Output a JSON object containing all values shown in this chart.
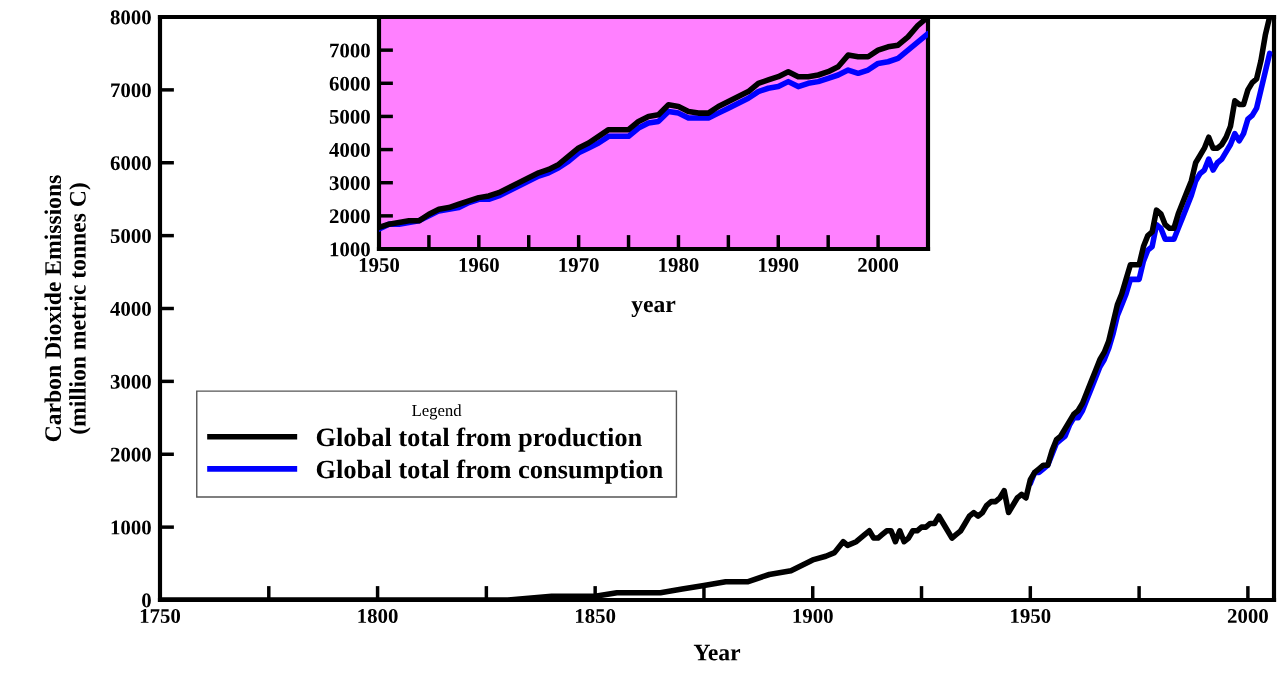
{
  "chart_data": [
    {
      "type": "line",
      "xlabel": "Year",
      "ylabel": "Carbon Dioxide Emissions\n(million metric tonnes C)",
      "legend_title": "Legend",
      "legend": "center left",
      "xlim": [
        1750,
        2006
      ],
      "xticks": [
        1750,
        {
          "value": 1775,
          "label": null
        },
        1800,
        {
          "value": 1825,
          "label": null
        },
        1850,
        {
          "value": 1875,
          "label": null
        },
        1900,
        {
          "value": 1925,
          "label": null
        },
        1950,
        {
          "value": 1975,
          "label": null
        },
        2000
      ],
      "ylim": [
        0,
        8000
      ],
      "yticks": [
        0,
        1000,
        2000,
        3000,
        4000,
        5000,
        6000,
        7000,
        8000
      ],
      "series": [
        {
          "name": "Global total from production",
          "color": "#000000",
          "x": [
            1750,
            1760,
            1770,
            1780,
            1790,
            1800,
            1810,
            1820,
            1830,
            1840,
            1850,
            1855,
            1860,
            1865,
            1870,
            1875,
            1880,
            1885,
            1890,
            1895,
            1900,
            1903,
            1905,
            1907,
            1908,
            1910,
            1912,
            1913,
            1914,
            1915,
            1916,
            1917,
            1918,
            1919,
            1920,
            1921,
            1922,
            1923,
            1924,
            1925,
            1926,
            1927,
            1928,
            1929,
            1930,
            1931,
            1932,
            1933,
            1934,
            1935,
            1936,
            1937,
            1938,
            1939,
            1940,
            1941,
            1942,
            1943,
            1944,
            1945,
            1946,
            1947,
            1948,
            1949,
            1950,
            1951,
            1952,
            1953,
            1954,
            1955,
            1956,
            1957,
            1958,
            1959,
            1960,
            1961,
            1962,
            1963,
            1964,
            1965,
            1966,
            1967,
            1968,
            1969,
            1970,
            1971,
            1972,
            1973,
            1974,
            1975,
            1976,
            1977,
            1978,
            1979,
            1980,
            1981,
            1982,
            1983,
            1984,
            1985,
            1986,
            1987,
            1988,
            1989,
            1990,
            1991,
            1992,
            1993,
            1994,
            1995,
            1996,
            1997,
            1998,
            1999,
            2000,
            2001,
            2002,
            2003,
            2004,
            2005
          ],
          "values": [
            0,
            0,
            0,
            0,
            0,
            0,
            0,
            0,
            0,
            50,
            50,
            100,
            100,
            100,
            150,
            200,
            250,
            250,
            350,
            400,
            550,
            600,
            650,
            800,
            750,
            800,
            900,
            950,
            850,
            850,
            900,
            950,
            950,
            800,
            950,
            800,
            850,
            950,
            950,
            1000,
            1000,
            1050,
            1050,
            1150,
            1050,
            950,
            850,
            900,
            950,
            1050,
            1150,
            1200,
            1150,
            1200,
            1300,
            1350,
            1350,
            1400,
            1500,
            1200,
            1300,
            1400,
            1450,
            1400,
            1650,
            1750,
            1800,
            1850,
            1850,
            2050,
            2200,
            2250,
            2350,
            2450,
            2550,
            2600,
            2700,
            2850,
            3000,
            3150,
            3300,
            3400,
            3550,
            3800,
            4050,
            4200,
            4400,
            4600,
            4600,
            4600,
            4850,
            5000,
            5050,
            5350,
            5300,
            5150,
            5100,
            5100,
            5300,
            5450,
            5600,
            5750,
            6000,
            6100,
            6200,
            6350,
            6200,
            6200,
            6250,
            6350,
            6500,
            6850,
            6800,
            6800,
            7000,
            7100,
            7150,
            7400,
            7750,
            8000
          ]
        },
        {
          "name": "Global total from consumption",
          "color": "#0000ff",
          "x": [
            1950,
            1951,
            1952,
            1953,
            1954,
            1955,
            1956,
            1957,
            1958,
            1959,
            1960,
            1961,
            1962,
            1963,
            1964,
            1965,
            1966,
            1967,
            1968,
            1969,
            1970,
            1971,
            1972,
            1973,
            1974,
            1975,
            1976,
            1977,
            1978,
            1979,
            1980,
            1981,
            1982,
            1983,
            1984,
            1985,
            1986,
            1987,
            1988,
            1989,
            1990,
            1991,
            1992,
            1993,
            1994,
            1995,
            1996,
            1997,
            1998,
            1999,
            2000,
            2001,
            2002,
            2003,
            2004,
            2005
          ],
          "values": [
            1600,
            1750,
            1750,
            1800,
            1850,
            2000,
            2150,
            2200,
            2250,
            2400,
            2500,
            2500,
            2600,
            2750,
            2900,
            3050,
            3200,
            3300,
            3450,
            3650,
            3900,
            4050,
            4200,
            4400,
            4400,
            4400,
            4650,
            4800,
            4850,
            5150,
            5100,
            4950,
            4950,
            4950,
            5100,
            5250,
            5400,
            5550,
            5750,
            5850,
            5900,
            6050,
            5900,
            6000,
            6050,
            6150,
            6250,
            6400,
            6300,
            6400,
            6600,
            6650,
            6750,
            7000,
            7250,
            7500
          ]
        }
      ]
    },
    {
      "type": "line",
      "xlabel": "year",
      "xlim": [
        1950,
        2005
      ],
      "xticks": [
        1950,
        {
          "value": 1955,
          "label": null
        },
        1960,
        {
          "value": 1965,
          "label": null
        },
        1970,
        {
          "value": 1975,
          "label": null
        },
        1980,
        {
          "value": 1985,
          "label": null
        },
        1990,
        {
          "value": 1995,
          "label": null
        },
        2000
      ],
      "ylim": [
        1000,
        8000
      ],
      "yticks": [
        1000,
        2000,
        3000,
        4000,
        5000,
        6000,
        7000
      ],
      "series": [
        {
          "color": "#000000",
          "x": [
            1950,
            1951,
            1952,
            1953,
            1954,
            1955,
            1956,
            1957,
            1958,
            1959,
            1960,
            1961,
            1962,
            1963,
            1964,
            1965,
            1966,
            1967,
            1968,
            1969,
            1970,
            1971,
            1972,
            1973,
            1974,
            1975,
            1976,
            1977,
            1978,
            1979,
            1980,
            1981,
            1982,
            1983,
            1984,
            1985,
            1986,
            1987,
            1988,
            1989,
            1990,
            1991,
            1992,
            1993,
            1994,
            1995,
            1996,
            1997,
            1998,
            1999,
            2000,
            2001,
            2002,
            2003,
            2004,
            2005
          ],
          "values": [
            1650,
            1750,
            1800,
            1850,
            1850,
            2050,
            2200,
            2250,
            2350,
            2450,
            2550,
            2600,
            2700,
            2850,
            3000,
            3150,
            3300,
            3400,
            3550,
            3800,
            4050,
            4200,
            4400,
            4600,
            4600,
            4600,
            4850,
            5000,
            5050,
            5350,
            5300,
            5150,
            5100,
            5100,
            5300,
            5450,
            5600,
            5750,
            6000,
            6100,
            6200,
            6350,
            6200,
            6200,
            6250,
            6350,
            6500,
            6850,
            6800,
            6800,
            7000,
            7100,
            7150,
            7400,
            7750,
            8000
          ]
        },
        {
          "color": "#0000ff",
          "x": [
            1950,
            1951,
            1952,
            1953,
            1954,
            1955,
            1956,
            1957,
            1958,
            1959,
            1960,
            1961,
            1962,
            1963,
            1964,
            1965,
            1966,
            1967,
            1968,
            1969,
            1970,
            1971,
            1972,
            1973,
            1974,
            1975,
            1976,
            1977,
            1978,
            1979,
            1980,
            1981,
            1982,
            1983,
            1984,
            1985,
            1986,
            1987,
            1988,
            1989,
            1990,
            1991,
            1992,
            1993,
            1994,
            1995,
            1996,
            1997,
            1998,
            1999,
            2000,
            2001,
            2002,
            2003,
            2004,
            2005
          ],
          "values": [
            1600,
            1750,
            1750,
            1800,
            1850,
            2000,
            2150,
            2200,
            2250,
            2400,
            2500,
            2500,
            2600,
            2750,
            2900,
            3050,
            3200,
            3300,
            3450,
            3650,
            3900,
            4050,
            4200,
            4400,
            4400,
            4400,
            4650,
            4800,
            4850,
            5150,
            5100,
            4950,
            4950,
            4950,
            5100,
            5250,
            5400,
            5550,
            5750,
            5850,
            5900,
            6050,
            5900,
            6000,
            6050,
            6150,
            6250,
            6400,
            6300,
            6400,
            6600,
            6650,
            6750,
            7000,
            7250,
            7500
          ]
        }
      ]
    }
  ]
}
